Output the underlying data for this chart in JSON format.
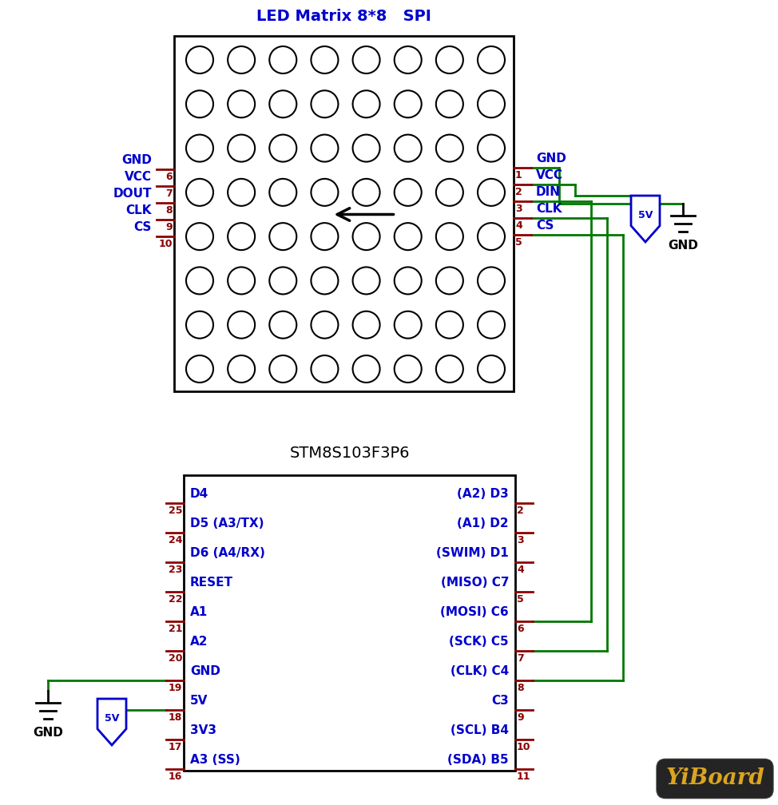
{
  "bg_color": "#ffffff",
  "title_led": "LED Matrix 8*8   SPI",
  "title_stm": "STM8S103F3P6",
  "blue": "#0000cc",
  "dark_red": "#8B0000",
  "green": "#007700",
  "black": "#000000",
  "fig_w": 9.74,
  "fig_h": 10.08,
  "dpi": 100,
  "led_pins_left": [
    {
      "num": "6",
      "label": "GND",
      "row": 0
    },
    {
      "num": "7",
      "label": "VCC",
      "row": 1
    },
    {
      "num": "8",
      "label": "DOUT",
      "row": 2
    },
    {
      "num": "9",
      "label": "CLK",
      "row": 3
    },
    {
      "num": "10",
      "label": "CS",
      "row": 4
    }
  ],
  "led_pins_right": [
    {
      "num": "1",
      "label": "GND",
      "row": 0
    },
    {
      "num": "2",
      "label": "VCC",
      "row": 1
    },
    {
      "num": "3",
      "label": "DIN",
      "row": 2
    },
    {
      "num": "4",
      "label": "CLK",
      "row": 3
    },
    {
      "num": "5",
      "label": "CS",
      "row": 4
    }
  ],
  "stm_pins_left": [
    {
      "num": "25",
      "label": "D4",
      "row": 0
    },
    {
      "num": "24",
      "label": "D5 (A3/TX)",
      "row": 1
    },
    {
      "num": "23",
      "label": "D6 (A4/RX)",
      "row": 2
    },
    {
      "num": "22",
      "label": "RESET",
      "row": 3
    },
    {
      "num": "21",
      "label": "A1",
      "row": 4
    },
    {
      "num": "20",
      "label": "A2",
      "row": 5
    },
    {
      "num": "19",
      "label": "GND",
      "row": 6
    },
    {
      "num": "18",
      "label": "5V",
      "row": 7
    },
    {
      "num": "17",
      "label": "3V3",
      "row": 8
    },
    {
      "num": "16",
      "label": "A3 (SS)",
      "row": 9
    }
  ],
  "stm_pins_right": [
    {
      "num": "2",
      "label": "(A2) D3",
      "row": 0
    },
    {
      "num": "3",
      "label": "(A1) D2",
      "row": 1
    },
    {
      "num": "4",
      "label": "(SWIM) D1",
      "row": 2
    },
    {
      "num": "5",
      "label": "(MISO) C7",
      "row": 3
    },
    {
      "num": "6",
      "label": "(MOSI) C6",
      "row": 4
    },
    {
      "num": "7",
      "label": "(SCK) C5",
      "row": 5
    },
    {
      "num": "8",
      "label": "(CLK) C4",
      "row": 6
    },
    {
      "num": "9",
      "label": "C3",
      "row": 7
    },
    {
      "num": "10",
      "label": "(SCL) B4",
      "row": 8
    },
    {
      "num": "11",
      "label": "(SDA) B5",
      "row": 9
    }
  ]
}
